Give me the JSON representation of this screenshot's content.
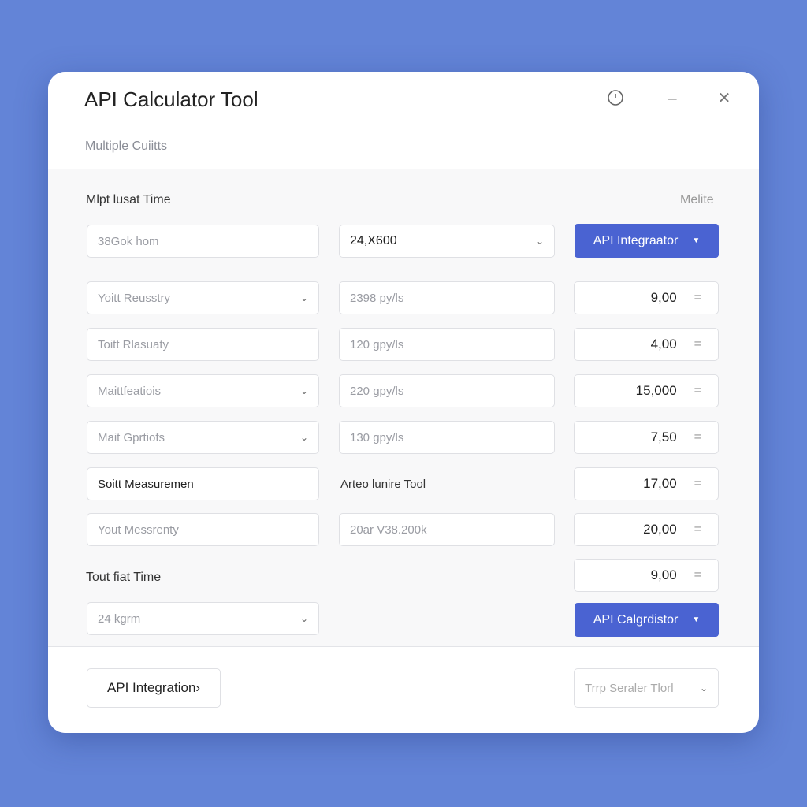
{
  "window": {
    "title": "API Calculator Tool",
    "subtitle": "Multiple Cuiitts",
    "icons": [
      "info-icon",
      "minimize-icon",
      "close-icon"
    ]
  },
  "section": {
    "label": "Mlpt lusat Time",
    "right_label": "Melite"
  },
  "top_row": {
    "input_placeholder": "38Gok hom",
    "select_value": "24,X600",
    "button_label": "API Integraator"
  },
  "rows": [
    {
      "field": "Yoitt Reusstry",
      "field_dropdown": true,
      "rate": "2398 py/ls",
      "value": "9,00"
    },
    {
      "field": "Toitt Rlasuaty",
      "field_dropdown": false,
      "rate": "120 gpy/ls",
      "value": "4,00"
    },
    {
      "field": "Maittfeatiois",
      "field_dropdown": true,
      "rate": "220 gpy/ls",
      "value": "15,000"
    },
    {
      "field": "Mait Gprtiofs",
      "field_dropdown": true,
      "rate": "130 gpy/ls",
      "value": "7,50"
    },
    {
      "field": "Soitt Measuremen",
      "field_dropdown": false,
      "rate_label": "Arteo lunire Tool",
      "value": "17,00"
    },
    {
      "field": "Yout Messrenty",
      "field_dropdown": false,
      "rate": "20ar V38.200k",
      "value": "20,00"
    }
  ],
  "total": {
    "label": "Tout fiat Time",
    "value": "9,00",
    "select_placeholder": "24 kgrm",
    "button_label": "API Calgrdistor"
  },
  "footer": {
    "left_button": "API Integration›",
    "right_select": "Trrp Seraler Tlorl"
  }
}
